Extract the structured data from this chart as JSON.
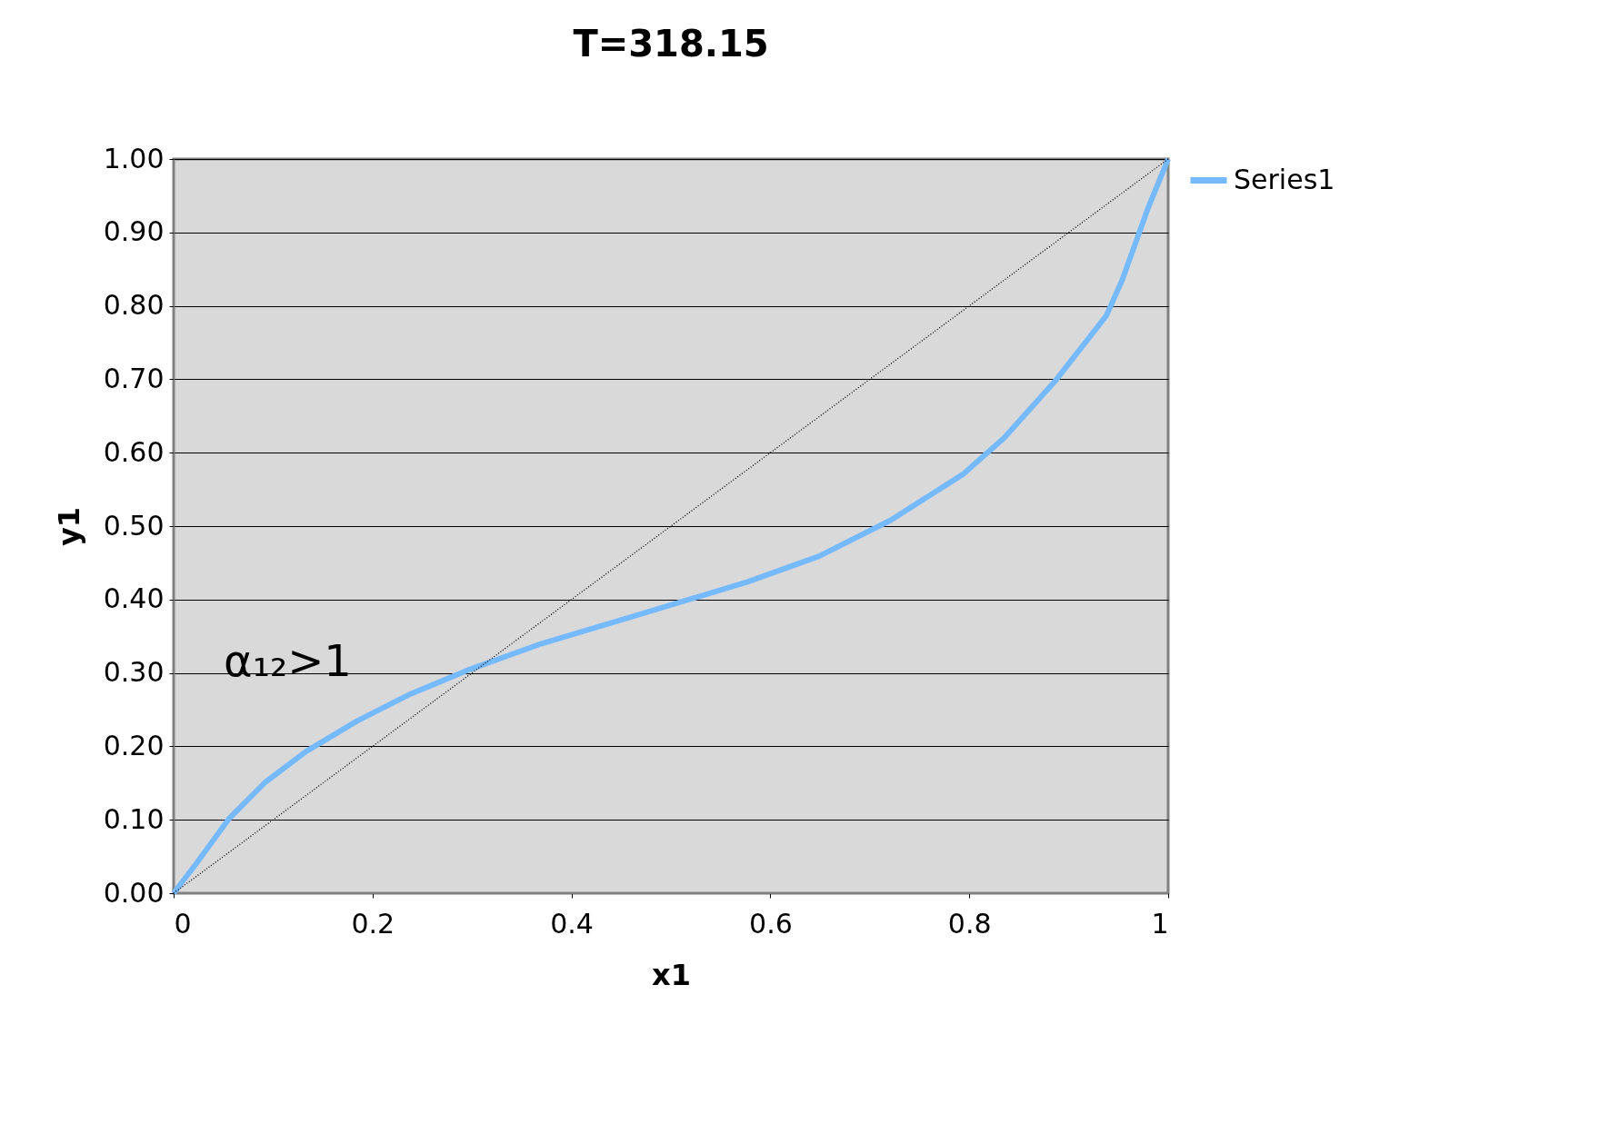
{
  "chart_data": {
    "type": "line",
    "title": "T=318.15",
    "xlabel": "x1",
    "ylabel": "y1",
    "xlim": [
      0,
      1
    ],
    "xticks": [
      0,
      0.2,
      0.4,
      0.6,
      0.8,
      1
    ],
    "ylim": [
      0,
      1
    ],
    "yticks": [
      {
        "value": 0,
        "label": "0.00"
      },
      {
        "value": 0.1,
        "label": "0.10"
      },
      {
        "value": 0.2,
        "label": "0.20"
      },
      {
        "value": 0.3,
        "label": "0.30"
      },
      {
        "value": 0.4,
        "label": "0.40"
      },
      {
        "value": 0.5,
        "label": "0.50"
      },
      {
        "value": 0.6,
        "label": "0.60"
      },
      {
        "value": 0.7,
        "label": "0.70"
      },
      {
        "value": 0.8,
        "label": "0.80"
      },
      {
        "value": 0.9,
        "label": "0.90"
      },
      {
        "value": 1,
        "label": "1.00"
      }
    ],
    "grid": "y",
    "legend": "right",
    "marker": "none",
    "annotations": [
      "α₁₂>1"
    ],
    "series": [
      {
        "name": "Series1",
        "color": "#75b9ff",
        "line_style": "solid",
        "x": [
          0,
          0.022,
          0.056,
          0.092,
          0.133,
          0.185,
          0.236,
          0.298,
          0.37,
          0.474,
          0.577,
          0.649,
          0.721,
          0.794,
          0.835,
          0.886,
          0.938,
          0.954,
          0.98,
          1
        ],
        "values": [
          0,
          0.039,
          0.102,
          0.151,
          0.193,
          0.235,
          0.27,
          0.305,
          0.34,
          0.382,
          0.424,
          0.459,
          0.508,
          0.571,
          0.62,
          0.697,
          0.787,
          0.836,
          0.934,
          1
        ]
      },
      {
        "color": "#000000",
        "line_style": "dotted",
        "x": [
          0,
          1
        ],
        "values": [
          0,
          1
        ]
      }
    ]
  }
}
